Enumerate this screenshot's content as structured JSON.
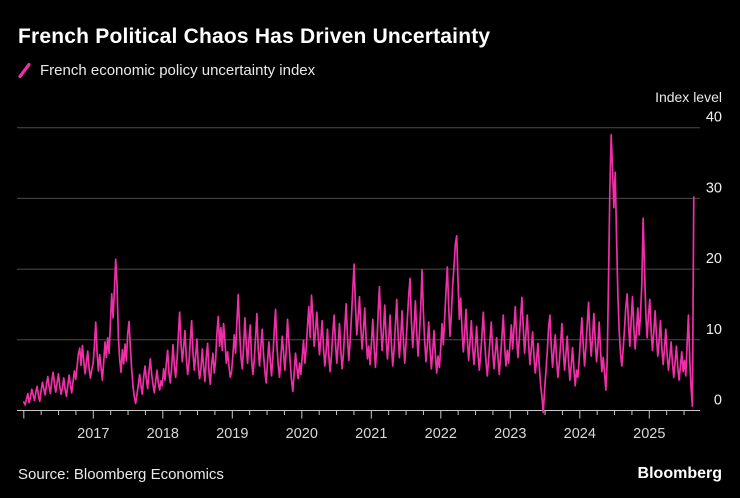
{
  "header": {
    "title": "French Political Chaos Has Driven Uncertainty",
    "legend_label": "French economic policy uncertainty index",
    "axis_unit_label": "Index level"
  },
  "footer": {
    "source": "Source: Bloomberg Economics",
    "brand": "Bloomberg"
  },
  "colors": {
    "background": "#000000",
    "line": "#ee2fa6",
    "grid": "#4c4c4c",
    "axis": "#c8c8c8",
    "title_text": "#ffffff",
    "muted_text": "#e9e9e9"
  },
  "chart_data": {
    "type": "line",
    "title": "French Political Chaos Has Driven Uncertainty",
    "ylabel": "Index level",
    "xlabel": "",
    "grid": "horizontal",
    "legend_position": "top-left",
    "y_ticks": [
      0,
      10,
      20,
      30,
      40
    ],
    "ylim": [
      0,
      40
    ],
    "x_tick_labels": [
      2017,
      2018,
      2019,
      2020,
      2021,
      2022,
      2023,
      2024,
      2025
    ],
    "x_minor_tick": "quarterly",
    "x_start_year": 2016,
    "x_end": "2025-09",
    "points_per_year": 52.18,
    "series": [
      {
        "name": "French economic policy uncertainty index",
        "color": "#ee2fa6",
        "frequency": "weekly",
        "values": [
          1.2,
          0.8,
          1.6,
          2.4,
          1.1,
          1.9,
          3.0,
          2.2,
          1.4,
          2.6,
          3.4,
          2.1,
          1.3,
          2.8,
          4.0,
          3.1,
          2.2,
          3.6,
          4.8,
          3.4,
          2.4,
          4.2,
          5.4,
          3.8,
          2.6,
          3.9,
          5.2,
          3.5,
          2.3,
          3.2,
          4.6,
          3.0,
          2.0,
          3.5,
          5.0,
          3.6,
          2.5,
          4.1,
          5.6,
          4.4,
          6.2,
          8.0,
          8.8,
          6.4,
          9.2,
          7.0,
          5.2,
          6.8,
          8.4,
          6.0,
          4.6,
          5.8,
          6.6,
          9.1,
          12.5,
          8.3,
          5.6,
          7.9,
          6.1,
          4.3,
          6.9,
          9.7,
          7.5,
          10.3,
          8.1,
          12.1,
          16.5,
          13.1,
          17.0,
          21.4,
          17.8,
          10.4,
          7.2,
          5.4,
          8.6,
          6.6,
          9.4,
          7.0,
          10.8,
          12.6,
          9.0,
          5.8,
          3.4,
          1.9,
          1.0,
          2.3,
          3.7,
          5.1,
          3.5,
          2.3,
          4.7,
          6.3,
          4.5,
          3.1,
          5.5,
          7.3,
          5.1,
          3.7,
          2.5,
          4.1,
          5.7,
          3.9,
          2.9,
          4.2,
          3.5,
          5.9,
          4.3,
          6.7,
          8.5,
          5.3,
          3.9,
          6.1,
          9.3,
          6.5,
          4.7,
          7.1,
          10.5,
          13.9,
          9.7,
          6.9,
          8.9,
          11.3,
          7.5,
          5.1,
          6.7,
          9.9,
          12.7,
          8.3,
          5.7,
          7.7,
          10.1,
          6.3,
          4.5,
          5.9,
          8.7,
          6.1,
          4.1,
          7.5,
          9.5,
          5.5,
          3.7,
          6.5,
          8.1,
          5.3,
          7.1,
          10.9,
          13.3,
          9.1,
          11.7,
          8.5,
          12.3,
          9.9,
          6.7,
          8.3,
          6.3,
          4.7,
          5.5,
          7.9,
          10.7,
          8.1,
          12.5,
          16.4,
          11.3,
          7.7,
          5.9,
          8.9,
          13.1,
          9.5,
          6.7,
          9.9,
          12.1,
          7.3,
          5.1,
          7.1,
          10.3,
          13.7,
          8.7,
          6.3,
          9.1,
          11.5,
          7.9,
          5.5,
          3.9,
          6.9,
          9.7,
          7.1,
          4.9,
          7.5,
          11.1,
          14.3,
          9.3,
          6.5,
          4.7,
          7.3,
          10.5,
          8.3,
          5.7,
          8.5,
          12.9,
          9.7,
          6.9,
          4.3,
          2.7,
          5.3,
          8.1,
          6.1,
          4.5,
          6.7,
          5.1,
          7.5,
          9.9,
          6.7,
          8.7,
          11.9,
          14.7,
          10.3,
          16.3,
          13.5,
          9.1,
          11.1,
          13.9,
          10.7,
          7.9,
          10.1,
          12.7,
          8.9,
          6.3,
          8.3,
          11.5,
          7.7,
          5.5,
          7.9,
          10.9,
          13.5,
          9.5,
          6.7,
          9.3,
          12.3,
          8.5,
          5.9,
          8.1,
          11.7,
          15.1,
          10.5,
          7.1,
          9.7,
          13.3,
          17.1,
          20.7,
          14.9,
          10.7,
          13.1,
          16.1,
          11.9,
          8.7,
          11.3,
          14.5,
          10.1,
          7.3,
          9.1,
          6.5,
          9.5,
          12.9,
          9.1,
          6.1,
          8.9,
          13.7,
          17.5,
          12.3,
          8.5,
          11.1,
          14.9,
          10.5,
          7.3,
          9.9,
          13.5,
          9.3,
          6.3,
          8.7,
          12.1,
          15.7,
          10.9,
          7.5,
          10.3,
          14.1,
          9.9,
          6.7,
          9.5,
          13.1,
          16.3,
          18.7,
          12.7,
          8.9,
          11.7,
          15.5,
          11.1,
          7.7,
          10.7,
          14.5,
          19.9,
          13.9,
          9.7,
          6.9,
          9.3,
          12.5,
          8.7,
          5.9,
          8.3,
          11.3,
          7.9,
          5.3,
          7.7,
          6.1,
          8.7,
          12.3,
          9.3,
          13.1,
          16.9,
          20.3,
          14.7,
          10.5,
          13.7,
          17.7,
          20.4,
          23.5,
          24.7,
          18.3,
          12.9,
          15.9,
          11.5,
          8.3,
          10.9,
          14.3,
          10.1,
          7.1,
          9.7,
          12.7,
          8.9,
          6.5,
          8.9,
          11.9,
          8.1,
          5.7,
          7.9,
          10.7,
          13.9,
          9.9,
          6.9,
          4.9,
          7.3,
          9.9,
          12.5,
          8.5,
          5.9,
          8.1,
          10.3,
          7.5,
          5.1,
          7.7,
          10.5,
          13.5,
          9.1,
          6.3,
          8.5,
          6.7,
          9.3,
          12.1,
          8.7,
          11.5,
          14.7,
          10.3,
          7.5,
          10.1,
          13.3,
          16.0,
          11.7,
          8.1,
          10.9,
          13.5,
          9.5,
          6.5,
          8.7,
          11.1,
          7.7,
          5.3,
          7.1,
          9.5,
          6.3,
          3.7,
          1.9,
          -0.3,
          2.9,
          5.5,
          8.3,
          11.7,
          13.5,
          9.1,
          6.1,
          8.5,
          10.7,
          7.3,
          4.7,
          6.7,
          9.3,
          12.3,
          8.7,
          5.7,
          7.9,
          10.5,
          6.9,
          4.3,
          6.3,
          8.9,
          5.9,
          3.5,
          5.7,
          4.7,
          7.3,
          10.3,
          13.1,
          9.3,
          6.3,
          8.9,
          12.1,
          15.3,
          10.7,
          7.7,
          10.3,
          13.7,
          9.9,
          6.9,
          9.1,
          12.5,
          8.5,
          5.5,
          7.5,
          5.3,
          2.9,
          6.9,
          18.5,
          31.1,
          39.0,
          34.3,
          28.7,
          33.7,
          24.9,
          16.5,
          11.3,
          8.1,
          6.3,
          8.7,
          11.5,
          14.7,
          16.5,
          12.3,
          9.1,
          12.7,
          16.1,
          11.7,
          8.7,
          11.3,
          14.5,
          10.7,
          13.5,
          17.9,
          27.2,
          20.3,
          13.7,
          10.3,
          13.5,
          15.7,
          11.3,
          8.5,
          11.1,
          14.1,
          10.5,
          7.7,
          9.9,
          12.7,
          8.9,
          6.5,
          8.7,
          11.5,
          7.9,
          5.7,
          7.5,
          9.7,
          6.7,
          4.7,
          6.9,
          9.1,
          6.1,
          4.3,
          6.3,
          8.3,
          5.5,
          7.1,
          4.9,
          9.3,
          13.5,
          7.1,
          3.1,
          0.6,
          30.2
        ]
      }
    ]
  }
}
